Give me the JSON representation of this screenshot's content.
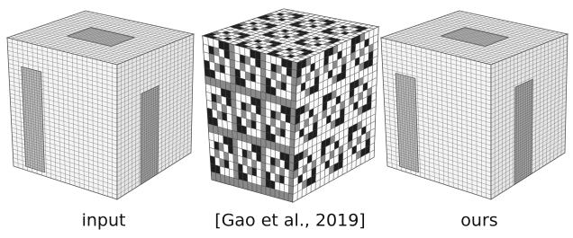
{
  "captions": [
    "input",
    "[Gao et al., 2019]",
    "ours"
  ]
}
